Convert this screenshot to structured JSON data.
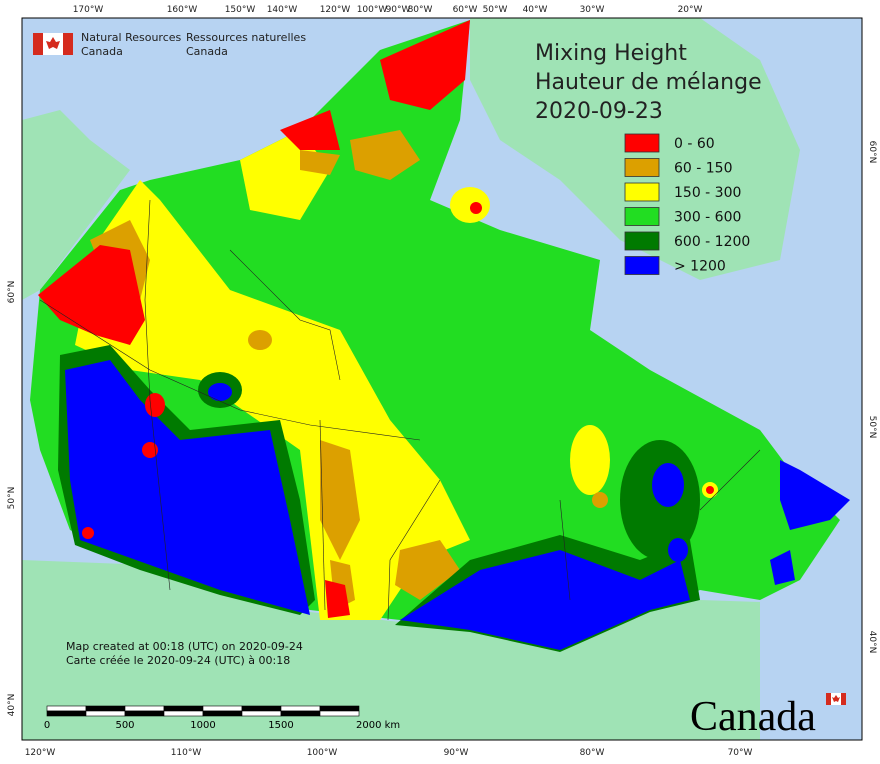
{
  "header": {
    "org_en": [
      "Natural Resources",
      "Canada"
    ],
    "org_fr": [
      "Ressources naturelles",
      "Canada"
    ]
  },
  "title": [
    "Mixing Height",
    "Hauteur de mélange",
    "2020-09-23"
  ],
  "legend": [
    {
      "label": "0 - 60",
      "color": "#ff0000"
    },
    {
      "label": "60 - 150",
      "color": "#dca000"
    },
    {
      "label": "150 - 300",
      "color": "#ffff00"
    },
    {
      "label": "300 - 600",
      "color": "#22dd22"
    },
    {
      "label": "600 - 1200",
      "color": "#007a00"
    },
    {
      "label": "> 1200",
      "color": "#0000ff"
    }
  ],
  "credits": [
    "Map created at 00:18 (UTC) on 2020-09-24",
    "Carte créée le 2020-09-24 (UTC) à 00:18"
  ],
  "graticule": {
    "top": [
      "170°W",
      "160°W",
      "150°W",
      "140°W",
      "120°W",
      "100°W",
      "90°W",
      "80°W",
      "60°W",
      "50°W",
      "40°W",
      "30°W",
      "20°W"
    ],
    "bottom": [
      "120°W",
      "110°W",
      "100°W",
      "90°W",
      "80°W",
      "70°W"
    ],
    "left": [
      "60°N",
      "50°N",
      "40°N"
    ],
    "right": [
      "60°N",
      "50°N",
      "40°N"
    ]
  },
  "scale_bar": [
    "0",
    "500",
    "1000",
    "1500",
    "2000 km"
  ],
  "wordmark": "Canada"
}
